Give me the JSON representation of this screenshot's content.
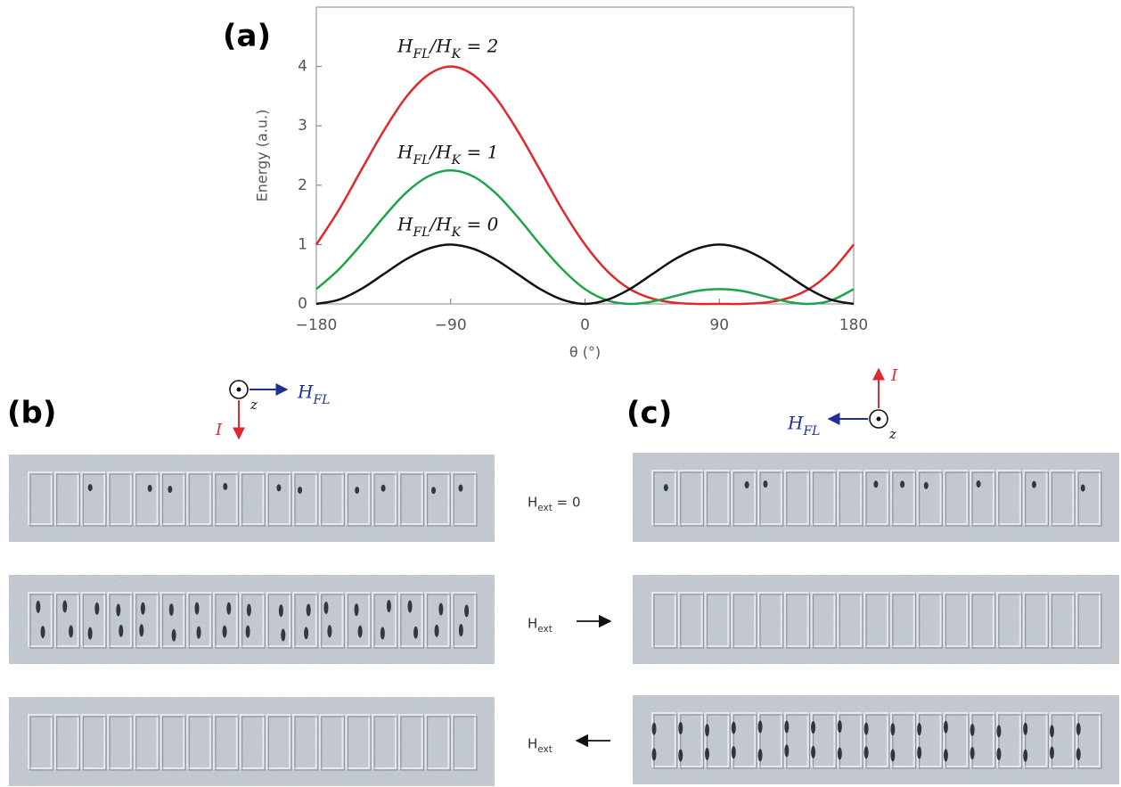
{
  "chart_data": {
    "type": "line",
    "xlabel": "θ (°)",
    "ylabel": "Energy (a.u.)",
    "x": [
      -180,
      -165,
      -150,
      -135,
      -120,
      -105,
      -90,
      -75,
      -60,
      -45,
      -30,
      -15,
      0,
      15,
      30,
      45,
      60,
      75,
      90,
      105,
      120,
      135,
      150,
      165,
      180
    ],
    "xlim": [
      -180,
      180
    ],
    "xticks": [
      {
        "value": -180,
        "label": "−180"
      },
      {
        "value": -90,
        "label": "−90"
      },
      0,
      90,
      180
    ],
    "ylim": [
      0,
      5
    ],
    "yticks": [
      0,
      1,
      2,
      3,
      4
    ],
    "series": [
      {
        "name": "HFL/HK = 2",
        "color": "#e0282e",
        "values": [
          1,
          1.58,
          2.25,
          2.91,
          3.48,
          3.86,
          4,
          3.86,
          3.48,
          2.91,
          2.25,
          1.58,
          1,
          0.55,
          0.25,
          0.09,
          0.02,
          0,
          0,
          0,
          0.02,
          0.09,
          0.25,
          0.55,
          1
        ]
      },
      {
        "name": "HFL/HK = 1",
        "color": "#1fa34a",
        "values": [
          0.25,
          0.58,
          1,
          1.46,
          1.87,
          2.15,
          2.25,
          2.15,
          1.87,
          1.46,
          1,
          0.58,
          0.25,
          0.06,
          0,
          0.04,
          0.13,
          0.22,
          0.25,
          0.22,
          0.13,
          0.04,
          0,
          0.06,
          0.25
        ]
      },
      {
        "name": "HFL/HK = 0",
        "color": "#111111",
        "values": [
          0,
          0.07,
          0.25,
          0.5,
          0.75,
          0.93,
          1,
          0.93,
          0.75,
          0.5,
          0.25,
          0.07,
          0,
          0.07,
          0.25,
          0.5,
          0.75,
          0.93,
          1,
          0.93,
          0.75,
          0.5,
          0.25,
          0.07,
          0
        ]
      }
    ]
  },
  "panels": {
    "a": {
      "label": "(a)"
    },
    "b": {
      "label": "(b)",
      "z": "z",
      "field": "HFL",
      "current": "I"
    },
    "c": {
      "label": "(c)",
      "z": "z",
      "field": "HFL",
      "current": "I"
    },
    "conditions": [
      "Hext = 0",
      "Hext",
      "Hext"
    ]
  }
}
